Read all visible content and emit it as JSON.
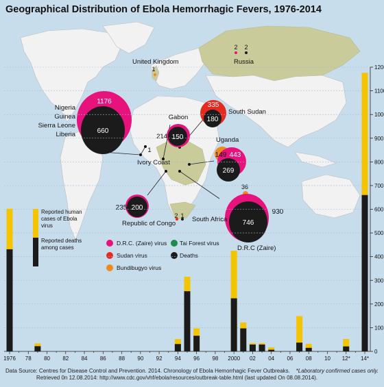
{
  "title": "Geographical Distribution of Ebola Hemorrhagic Fevers, 1976-2014",
  "source_line1": "Data Source: Centres for Disease Control and Prevention. 2014. Chronology of Ebola Hemorrhagic Fever Outbreaks.",
  "source_line2": "Retrieved 0n 12.08.2014: http://www.cdc.gov/vhf/ebola/resources/outbreak-table.html (last updated On 08.08.2014).",
  "footnote": "*Laboratory confirmed cases only.",
  "colors": {
    "cases": "#f5c400",
    "deaths": "#1b1b1b",
    "drc_virus": "#e8127d",
    "sudan_virus": "#e42b1f",
    "tai_forest_virus": "#1f8a4c",
    "bundibugyo_virus": "#f08a1c",
    "map_land": "#f2f2f2",
    "map_affected": "#c9cc9a",
    "ocean": "#c8ddec"
  },
  "bar_legend": {
    "cases": "Reported human cases of Ebola virus",
    "deaths": "Reported deaths among cases"
  },
  "map_legend": [
    {
      "label": "D.R.C. (Zaire) virus",
      "color_key": "drc_virus"
    },
    {
      "label": "Tai Forest virus",
      "color_key": "tai_forest_virus"
    },
    {
      "label": "Sudan virus",
      "color_key": "sudan_virus"
    },
    {
      "label": "Deaths",
      "color_key": "deaths"
    },
    {
      "label": "Bundibugyo virus",
      "color_key": "bundibugyo_virus"
    }
  ],
  "regions": {
    "west_africa": {
      "labels": [
        "Nigeria",
        "Guinea",
        "Sierra Leone",
        "Liberia"
      ],
      "cases": "1176",
      "deaths": "660"
    },
    "gabon": {
      "label": "Gabon",
      "cases": "214",
      "deaths": "150"
    },
    "ivory_coast": {
      "label": "Ivory Coast",
      "cases": "1"
    },
    "south_sudan": {
      "label": "South Sudan",
      "cases": "335",
      "deaths": "180"
    },
    "uganda": {
      "label": "Uganda",
      "cases_bundibugyo": "149",
      "cases_drc": "443",
      "deaths": "269"
    },
    "drc": {
      "label": "D.R.C (Zaire)",
      "cases_bundibugyo": "36",
      "cases": "930",
      "deaths": "746"
    },
    "republic_of_congo": {
      "label": "Republic of Congo",
      "cases": "235",
      "deaths": "200"
    },
    "south_africa": {
      "label": "South Africa",
      "cases": "2",
      "deaths": "1"
    },
    "russia": {
      "label": "Russia",
      "cases": "2",
      "deaths": "2"
    },
    "united_kingdom": {
      "label": "United Kingdom",
      "cases": "1"
    }
  },
  "chart_data": {
    "type": "bar",
    "stacked": "overlaid",
    "title": "Geographical Distribution of Ebola Hemorrhagic Fevers, 1976-2014",
    "x_tick_labels": [
      "1976",
      "78",
      "80",
      "82",
      "84",
      "86",
      "88",
      "90",
      "92",
      "94",
      "96",
      "98",
      "2000",
      "02",
      "04",
      "06",
      "08",
      "10",
      "12*",
      "14*"
    ],
    "ylim": [
      0,
      1200
    ],
    "y_ticks": [
      0,
      100,
      200,
      300,
      400,
      500,
      600,
      700,
      800,
      900,
      1000,
      1100,
      1200
    ],
    "y_axis_side": "right",
    "grid": true,
    "legend": "left",
    "series": [
      {
        "name": "Reported human cases of Ebola virus",
        "color": "#f5c400"
      },
      {
        "name": "Reported deaths among cases",
        "color": "#1b1b1b"
      }
    ],
    "bars": [
      {
        "year": 1976,
        "cases": 602,
        "deaths": 431
      },
      {
        "year": 1979,
        "cases": 34,
        "deaths": 22
      },
      {
        "year": 1994,
        "cases": 52,
        "deaths": 31
      },
      {
        "year": 1995,
        "cases": 315,
        "deaths": 254
      },
      {
        "year": 1996,
        "cases": 97,
        "deaths": 66
      },
      {
        "year": 2000,
        "cases": 425,
        "deaths": 224
      },
      {
        "year": 2001,
        "cases": 122,
        "deaths": 97
      },
      {
        "year": 2002,
        "cases": 35,
        "deaths": 29
      },
      {
        "year": 2003,
        "cases": 35,
        "deaths": 29
      },
      {
        "year": 2004,
        "cases": 17,
        "deaths": 7
      },
      {
        "year": 2007,
        "cases": 149,
        "deaths": 37
      },
      {
        "year": 2008,
        "cases": 32,
        "deaths": 15
      },
      {
        "year": 2012,
        "cases": 52,
        "deaths": 21
      },
      {
        "year": 2014,
        "cases": 1176,
        "deaths": 660
      }
    ]
  }
}
